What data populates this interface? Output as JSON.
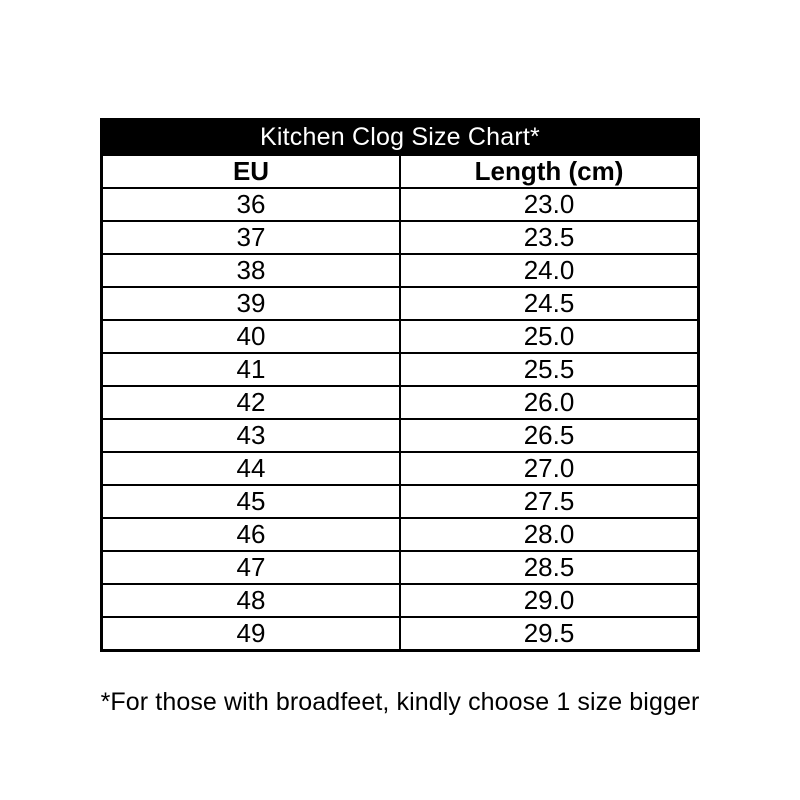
{
  "size_chart": {
    "title": "Kitchen Clog Size Chart*",
    "columns": [
      "EU",
      "Length (cm)"
    ],
    "rows": [
      [
        "36",
        "23.0"
      ],
      [
        "37",
        "23.5"
      ],
      [
        "38",
        "24.0"
      ],
      [
        "39",
        "24.5"
      ],
      [
        "40",
        "25.0"
      ],
      [
        "41",
        "25.5"
      ],
      [
        "42",
        "26.0"
      ],
      [
        "43",
        "26.5"
      ],
      [
        "44",
        "27.0"
      ],
      [
        "45",
        "27.5"
      ],
      [
        "46",
        "28.0"
      ],
      [
        "47",
        "28.5"
      ],
      [
        "48",
        "29.0"
      ],
      [
        "49",
        "29.5"
      ]
    ],
    "footnote": "*For those with broadfeet, kindly choose 1 size bigger",
    "colors": {
      "title_background": "#000000",
      "title_text": "#ffffff",
      "border": "#000000",
      "cell_text": "#000000",
      "page_background": "#ffffff"
    }
  },
  "chart_data": {
    "type": "table",
    "title": "Kitchen Clog Size Chart*",
    "columns": [
      "EU",
      "Length (cm)"
    ],
    "rows": [
      [
        36,
        23.0
      ],
      [
        37,
        23.5
      ],
      [
        38,
        24.0
      ],
      [
        39,
        24.5
      ],
      [
        40,
        25.0
      ],
      [
        41,
        25.5
      ],
      [
        42,
        26.0
      ],
      [
        43,
        26.5
      ],
      [
        44,
        27.0
      ],
      [
        45,
        27.5
      ],
      [
        46,
        28.0
      ],
      [
        47,
        28.5
      ],
      [
        48,
        29.0
      ],
      [
        49,
        29.5
      ]
    ],
    "footnote": "*For those with broadfeet, kindly choose 1 size bigger",
    "layout": "two-column table, black title band with white centered text, bold column headers, centered values, black grid borders on white background"
  }
}
